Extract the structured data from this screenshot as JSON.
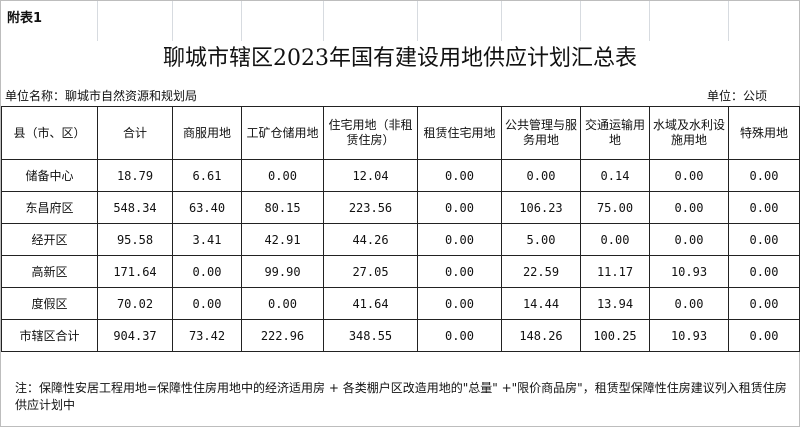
{
  "annex_label": "附表1",
  "title": "聊城市辖区2023年国有建设用地供应计划汇总表",
  "unit_name": "单位名称：聊城市自然资源和规划局",
  "unit": "单位：公顷",
  "headers": [
    "县（市、区）",
    "合计",
    "商服用地",
    "工矿仓储用地",
    "住宅用地（非租赁住房）",
    "租赁住宅用地",
    "公共管理与服务用地",
    "交通运输用地",
    "水域及水利设施用地",
    "特殊用地"
  ],
  "rows": [
    [
      "储备中心",
      "18.79",
      "6.61",
      "0.00",
      "12.04",
      "0.00",
      "0.00",
      "0.14",
      "0.00",
      "0.00"
    ],
    [
      "东昌府区",
      "548.34",
      "63.40",
      "80.15",
      "223.56",
      "0.00",
      "106.23",
      "75.00",
      "0.00",
      "0.00"
    ],
    [
      "经开区",
      "95.58",
      "3.41",
      "42.91",
      "44.26",
      "0.00",
      "5.00",
      "0.00",
      "0.00",
      "0.00"
    ],
    [
      "高新区",
      "171.64",
      "0.00",
      "99.90",
      "27.05",
      "0.00",
      "22.59",
      "11.17",
      "10.93",
      "0.00"
    ],
    [
      "度假区",
      "70.02",
      "0.00",
      "0.00",
      "41.64",
      "0.00",
      "14.44",
      "13.94",
      "0.00",
      "0.00"
    ],
    [
      "市辖区合计",
      "904.37",
      "73.42",
      "222.96",
      "348.55",
      "0.00",
      "148.26",
      "100.25",
      "10.93",
      "0.00"
    ]
  ],
  "note": "注：保障性安居工程用地=保障性住房用地中的经济适用房 + 各类棚户区改造用地的\"总量\" +\"限价商品房\"，租赁型保障性住房建议列入租赁住房供应计划中"
}
